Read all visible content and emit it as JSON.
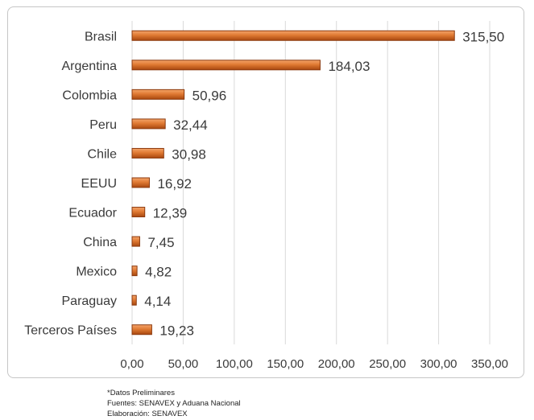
{
  "chart_data": {
    "type": "bar",
    "orientation": "horizontal",
    "categories": [
      "Brasil",
      "Argentina",
      "Colombia",
      "Peru",
      "Chile",
      "EEUU",
      "Ecuador",
      "China",
      "Mexico",
      "Paraguay",
      "Terceros Países"
    ],
    "values": [
      315.5,
      184.03,
      50.96,
      32.44,
      30.98,
      16.92,
      12.39,
      7.45,
      4.82,
      4.14,
      19.23
    ],
    "value_labels": [
      "315,50",
      "184,03",
      "50,96",
      "32,44",
      "30,98",
      "16,92",
      "12,39",
      "7,45",
      "4,82",
      "4,14",
      "19,23"
    ],
    "xticks": [
      0,
      50,
      100,
      150,
      200,
      250,
      300,
      350
    ],
    "xtick_labels": [
      "0,00",
      "50,00",
      "100,00",
      "150,00",
      "200,00",
      "250,00",
      "300,00",
      "350,00"
    ],
    "xlim": [
      0,
      350
    ],
    "grid": "vertical",
    "bar_color": "#d2691e",
    "bar_edge_color": "#8b3a0e",
    "title": "",
    "xlabel": "",
    "ylabel": ""
  },
  "footnotes": {
    "preliminary": "*Datos Preliminares",
    "sources": "Fuentes: SENAVEX y Aduana Nacional",
    "elaboration": "Elaboración: SENAVEX"
  }
}
